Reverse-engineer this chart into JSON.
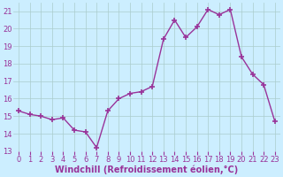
{
  "x": [
    0,
    1,
    2,
    3,
    4,
    5,
    6,
    7,
    8,
    9,
    10,
    11,
    12,
    13,
    14,
    15,
    16,
    17,
    18,
    19,
    20,
    21,
    22,
    23
  ],
  "y": [
    15.3,
    15.1,
    15.0,
    14.8,
    14.9,
    14.2,
    14.1,
    13.2,
    15.3,
    16.0,
    16.3,
    16.4,
    16.7,
    19.4,
    20.5,
    19.5,
    20.1,
    21.1,
    20.8,
    21.1,
    18.4,
    17.4,
    16.8,
    14.7
  ],
  "line_color": "#993399",
  "marker": "+",
  "markersize": 4,
  "markeredgewidth": 1.2,
  "linewidth": 1.0,
  "xlabel": "Windchill (Refroidissement éolien,°C)",
  "xlim": [
    -0.5,
    23.5
  ],
  "ylim": [
    13,
    21.5
  ],
  "yticks": [
    13,
    14,
    15,
    16,
    17,
    18,
    19,
    20,
    21
  ],
  "xticks": [
    0,
    1,
    2,
    3,
    4,
    5,
    6,
    7,
    8,
    9,
    10,
    11,
    12,
    13,
    14,
    15,
    16,
    17,
    18,
    19,
    20,
    21,
    22,
    23
  ],
  "bg_color": "#cceeff",
  "grid_color": "#aacccc",
  "text_color": "#993399",
  "tick_label_fontsize": 6.0,
  "xlabel_fontsize": 7.0,
  "figsize": [
    3.2,
    2.0
  ],
  "dpi": 100
}
